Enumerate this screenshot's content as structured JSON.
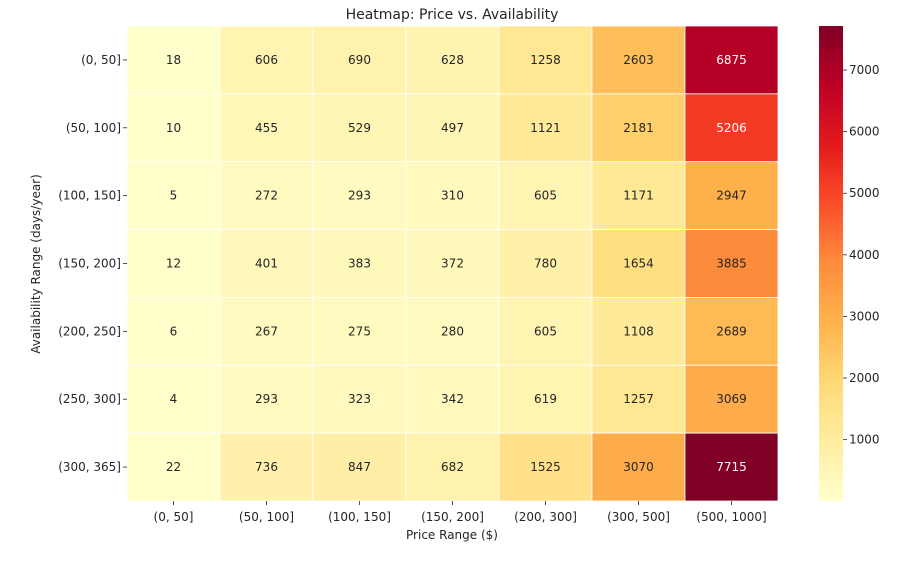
{
  "chart_data": {
    "type": "heatmap",
    "title": "Heatmap: Price vs. Availability",
    "xlabel": "Price Range ($)",
    "ylabel": "Availability Range (days/year)",
    "x_categories": [
      "(0, 50]",
      "(50, 100]",
      "(100, 150]",
      "(150, 200]",
      "(200, 300]",
      "(300, 500]",
      "(500, 1000]"
    ],
    "y_categories": [
      "(0, 50]",
      "(50, 100]",
      "(100, 150]",
      "(150, 200]",
      "(200, 250]",
      "(250, 300]",
      "(300, 365]"
    ],
    "values": [
      [
        18,
        606,
        690,
        628,
        1258,
        2603,
        6875
      ],
      [
        10,
        455,
        529,
        497,
        1121,
        2181,
        5206
      ],
      [
        5,
        272,
        293,
        310,
        605,
        1171,
        2947
      ],
      [
        12,
        401,
        383,
        372,
        780,
        1654,
        3885
      ],
      [
        6,
        267,
        275,
        280,
        605,
        1108,
        2689
      ],
      [
        4,
        293,
        323,
        342,
        619,
        1257,
        3069
      ],
      [
        22,
        736,
        847,
        682,
        1525,
        3070,
        7715
      ]
    ],
    "colormap": "YlOrRd",
    "annotations": true,
    "colorbar": {
      "ticks": [
        1000,
        2000,
        3000,
        4000,
        5000,
        6000,
        7000
      ],
      "range": [
        4,
        7715
      ]
    },
    "colors": {
      "ramp": [
        "#ffffcc",
        "#ffeda0",
        "#fed976",
        "#feb24c",
        "#fd8d3c",
        "#fc4e2a",
        "#e31a1c",
        "#bd0026",
        "#800026"
      ],
      "grid": "#ffffff",
      "text": "#262626"
    }
  }
}
